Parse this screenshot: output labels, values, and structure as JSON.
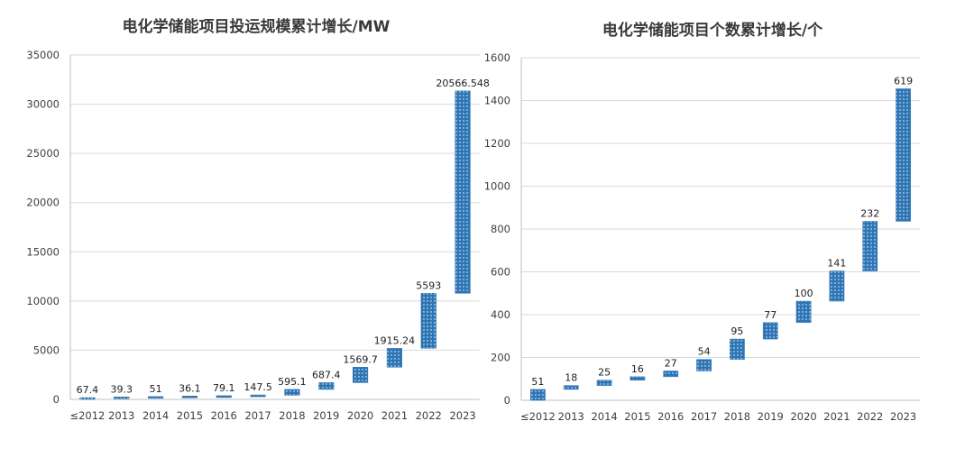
{
  "chart_data": [
    {
      "type": "bar",
      "subtype": "waterfall",
      "title": "电化学储能项目投运规模累计增长/MW",
      "categories": [
        "≤2012",
        "2013",
        "2014",
        "2015",
        "2016",
        "2017",
        "2018",
        "2019",
        "2020",
        "2021",
        "2022",
        "2023"
      ],
      "values": [
        67.4,
        39.3,
        51,
        36.1,
        79.1,
        147.5,
        595.1,
        687.4,
        1569.7,
        1915.24,
        5593,
        20566.548
      ],
      "data_labels": [
        "67.4",
        "39.3",
        "51",
        "36.1",
        "79.1",
        "147.5",
        "595.1",
        "687.4",
        "1569.7",
        "1915.24",
        "5593",
        "20566.548"
      ],
      "ylim": [
        0,
        35000
      ],
      "yticks": [
        "0",
        "5000",
        "10000",
        "15000",
        "20000",
        "25000",
        "30000",
        "35000"
      ],
      "grid": true,
      "bar_color": "#2e75b6"
    },
    {
      "type": "bar",
      "subtype": "waterfall",
      "title": "电化学储能项目个数累计增长/个",
      "categories": [
        "≤2012",
        "2013",
        "2014",
        "2015",
        "2016",
        "2017",
        "2018",
        "2019",
        "2020",
        "2021",
        "2022",
        "2023"
      ],
      "values": [
        51,
        18,
        25,
        16,
        27,
        54,
        95,
        77,
        100,
        141,
        232,
        619
      ],
      "data_labels": [
        "51",
        "18",
        "25",
        "16",
        "27",
        "54",
        "95",
        "77",
        "100",
        "141",
        "232",
        "619"
      ],
      "ylim": [
        0,
        1600
      ],
      "yticks": [
        "0",
        "200",
        "400",
        "600",
        "800",
        "1000",
        "1200",
        "1400",
        "1600"
      ],
      "grid": true,
      "bar_color": "#2e75b6"
    }
  ]
}
